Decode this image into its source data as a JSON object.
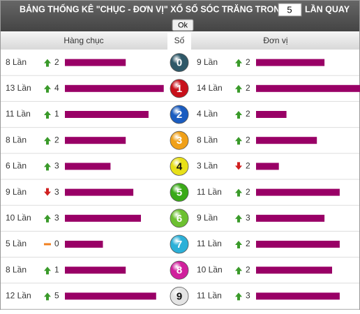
{
  "header": {
    "title": "BẢNG THỐNG KÊ \"CHỤC - ĐƠN VỊ\" XỔ SỐ SÓC TRĂNG TRONG",
    "input_value": "5",
    "suffix": "LẦN QUAY",
    "button": "Ok"
  },
  "columns": [
    "Hàng chục",
    "Số",
    "Đơn vị"
  ],
  "bar_color": "#990066",
  "rows": [
    {
      "digit": "0",
      "ball_color": "#2e5868",
      "tens": {
        "count": 8,
        "count_label": "8 Lần",
        "trend": "up",
        "change": 2
      },
      "units": {
        "count": 9,
        "count_label": "9 Lần",
        "trend": "up",
        "change": 2
      }
    },
    {
      "digit": "1",
      "ball_color": "#c8101a",
      "tens": {
        "count": 13,
        "count_label": "13 Lần",
        "trend": "up",
        "change": 4
      },
      "units": {
        "count": 14,
        "count_label": "14 Lần",
        "trend": "up",
        "change": 2
      }
    },
    {
      "digit": "2",
      "ball_color": "#1a5cc0",
      "tens": {
        "count": 11,
        "count_label": "11 Lần",
        "trend": "up",
        "change": 1
      },
      "units": {
        "count": 4,
        "count_label": "4 Lần",
        "trend": "up",
        "change": 2
      }
    },
    {
      "digit": "3",
      "ball_color": "#f0a018",
      "tens": {
        "count": 8,
        "count_label": "8 Lần",
        "trend": "up",
        "change": 2
      },
      "units": {
        "count": 8,
        "count_label": "8 Lần",
        "trend": "up",
        "change": 2
      }
    },
    {
      "digit": "4",
      "ball_color": "#e8e018",
      "tens": {
        "count": 6,
        "count_label": "6 Lần",
        "trend": "up",
        "change": 3
      },
      "units": {
        "count": 3,
        "count_label": "3 Lần",
        "trend": "down",
        "change": 2
      }
    },
    {
      "digit": "5",
      "ball_color": "#3aaa18",
      "tens": {
        "count": 9,
        "count_label": "9 Lần",
        "trend": "down",
        "change": 3
      },
      "units": {
        "count": 11,
        "count_label": "11 Lần",
        "trend": "up",
        "change": 2
      }
    },
    {
      "digit": "6",
      "ball_color": "#6cc030",
      "tens": {
        "count": 10,
        "count_label": "10 Lần",
        "trend": "up",
        "change": 3
      },
      "units": {
        "count": 9,
        "count_label": "9 Lần",
        "trend": "up",
        "change": 3
      }
    },
    {
      "digit": "7",
      "ball_color": "#2cb0d8",
      "tens": {
        "count": 5,
        "count_label": "5 Lần",
        "trend": "flat",
        "change": 0
      },
      "units": {
        "count": 11,
        "count_label": "11 Lần",
        "trend": "up",
        "change": 2
      }
    },
    {
      "digit": "8",
      "ball_color": "#d0209c",
      "tens": {
        "count": 8,
        "count_label": "8 Lần",
        "trend": "up",
        "change": 1
      },
      "units": {
        "count": 10,
        "count_label": "10 Lần",
        "trend": "up",
        "change": 2
      }
    },
    {
      "digit": "9",
      "ball_color": "#e4e4e4",
      "tens": {
        "count": 12,
        "count_label": "12 Lần",
        "trend": "up",
        "change": 5
      },
      "units": {
        "count": 11,
        "count_label": "11 Lần",
        "trend": "up",
        "change": 3
      }
    }
  ]
}
